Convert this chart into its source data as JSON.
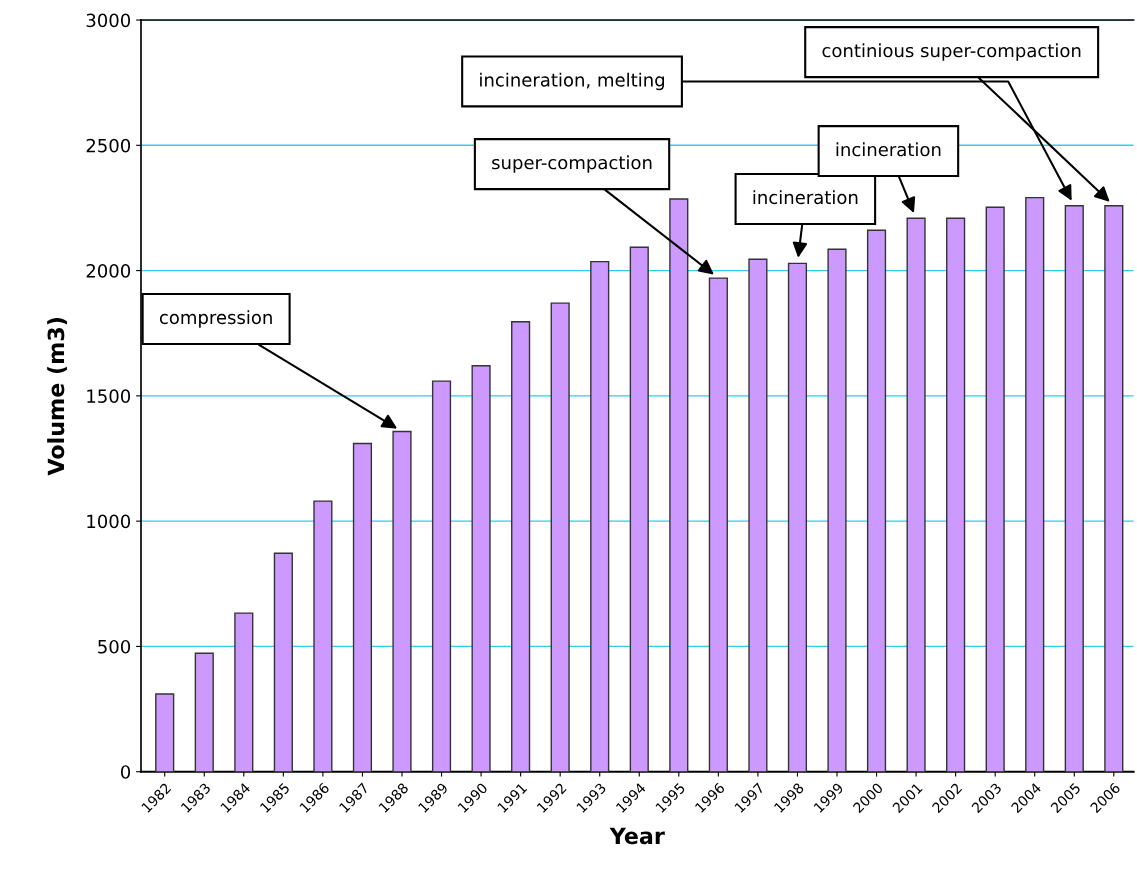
{
  "chart_data": {
    "type": "bar",
    "xlabel": "Year",
    "ylabel": "Volume (m3)",
    "categories": [
      "1982",
      "1983",
      "1984",
      "1985",
      "1986",
      "1987",
      "1988",
      "1989",
      "1990",
      "1991",
      "1992",
      "1993",
      "1994",
      "1995",
      "1996",
      "1997",
      "1998",
      "1999",
      "2000",
      "2001",
      "2002",
      "2003",
      "2004",
      "2005",
      "2006"
    ],
    "values": [
      310,
      473,
      633,
      872,
      1080,
      1310,
      1358,
      1559,
      1620,
      1796,
      1870,
      2036,
      2093,
      2286,
      1970,
      2045,
      2029,
      2085,
      2161,
      2209,
      2209,
      2253,
      2291,
      2259,
      2259
    ],
    "color": "#cc99ff",
    "ylim": [
      0,
      3000
    ],
    "yticks": [
      0,
      500,
      1000,
      1500,
      2000,
      2500,
      3000
    ],
    "grid": "y",
    "legend": false,
    "annotations": [
      {
        "text": "compression",
        "x": "1988",
        "y": 1358
      },
      {
        "text": "super-compaction",
        "x": "1996",
        "y": 1970
      },
      {
        "text": "incineration",
        "x": "1998",
        "y": 2029
      },
      {
        "text": "incineration",
        "x": "2001",
        "y": 2209
      },
      {
        "text": "incineration, melting",
        "x": "2005",
        "y": 2259
      },
      {
        "text": "continious super-compaction",
        "x": "2006",
        "y": 2259
      }
    ]
  }
}
